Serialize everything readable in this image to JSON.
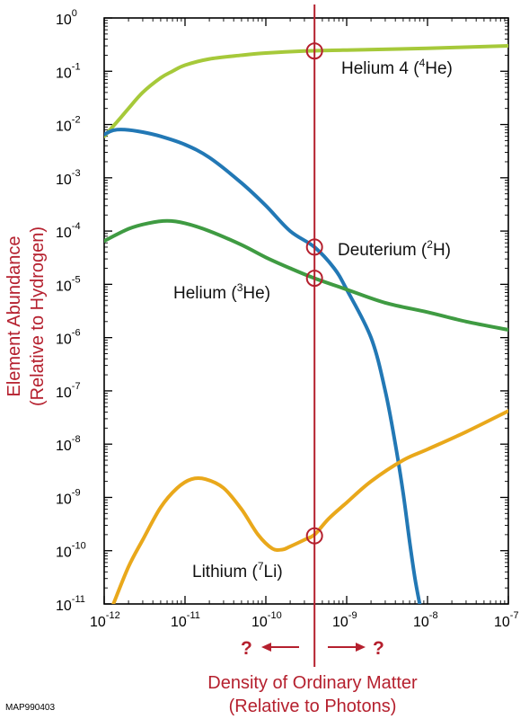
{
  "chart_data": {
    "type": "line",
    "x_scale": "log",
    "y_scale": "log",
    "xlim": [
      1e-12,
      1e-07
    ],
    "ylim": [
      1e-11,
      1
    ],
    "grid": false,
    "xlabel": [
      "Density of Ordinary Matter",
      "(Relative to Photons)"
    ],
    "ylabel": [
      "Element Abundance",
      "(Relative to Hydrogen)"
    ],
    "x_ticks": [
      {
        "base": "10",
        "exp": "-12",
        "value": 1e-12
      },
      {
        "base": "10",
        "exp": "-11",
        "value": 1e-11
      },
      {
        "base": "10",
        "exp": "-10",
        "value": 1e-10
      },
      {
        "base": "10",
        "exp": "-9",
        "value": 1e-09
      },
      {
        "base": "10",
        "exp": "-8",
        "value": 1e-08
      },
      {
        "base": "10",
        "exp": "-7",
        "value": 1e-07
      }
    ],
    "y_ticks": [
      {
        "base": "10",
        "exp": "0",
        "value": 1
      },
      {
        "base": "10",
        "exp": "-1",
        "value": 0.1
      },
      {
        "base": "10",
        "exp": "-2",
        "value": 0.01
      },
      {
        "base": "10",
        "exp": "-3",
        "value": 0.001
      },
      {
        "base": "10",
        "exp": "-4",
        "value": 0.0001
      },
      {
        "base": "10",
        "exp": "-5",
        "value": 1e-05
      },
      {
        "base": "10",
        "exp": "-6",
        "value": 1e-06
      },
      {
        "base": "10",
        "exp": "-7",
        "value": 1e-07
      },
      {
        "base": "10",
        "exp": "-8",
        "value": 1e-08
      },
      {
        "base": "10",
        "exp": "-9",
        "value": 1e-09
      },
      {
        "base": "10",
        "exp": "-10",
        "value": 1e-10
      },
      {
        "base": "10",
        "exp": "-11",
        "value": 1e-11
      }
    ],
    "series": [
      {
        "key": "he4",
        "label": {
          "pre": "Helium 4 (",
          "sup": "4",
          "post": "He)"
        },
        "color": "#a6c93a",
        "points": [
          [
            1e-12,
            0.006
          ],
          [
            1.5e-12,
            0.012
          ],
          [
            2e-12,
            0.02
          ],
          [
            3e-12,
            0.04
          ],
          [
            5e-12,
            0.075
          ],
          [
            7e-12,
            0.1
          ],
          [
            1e-11,
            0.13
          ],
          [
            2e-11,
            0.17
          ],
          [
            5e-11,
            0.2
          ],
          [
            1e-10,
            0.22
          ],
          [
            3e-10,
            0.24
          ],
          [
            1e-09,
            0.25
          ],
          [
            1e-08,
            0.27
          ],
          [
            1e-07,
            0.3
          ]
        ]
      },
      {
        "key": "deuterium",
        "label": {
          "pre": "Deuterium (",
          "sup": "2",
          "post": "H)"
        },
        "color": "#2278b5",
        "points": [
          [
            1e-12,
            0.0065
          ],
          [
            1.3e-12,
            0.0078
          ],
          [
            1.8e-12,
            0.008
          ],
          [
            3e-12,
            0.0072
          ],
          [
            5e-12,
            0.006
          ],
          [
            1e-11,
            0.0042
          ],
          [
            2e-11,
            0.0024
          ],
          [
            5e-11,
            0.0008
          ],
          [
            1e-10,
            0.0003
          ],
          [
            2e-10,
            0.0001
          ],
          [
            4e-10,
            5e-05
          ],
          [
            7e-10,
            2e-05
          ],
          [
            1e-09,
            8e-06
          ],
          [
            2e-09,
            1e-06
          ],
          [
            3e-09,
            1e-07
          ],
          [
            4e-09,
            1e-08
          ],
          [
            5e-09,
            1.2e-09
          ],
          [
            6e-09,
            1.5e-10
          ],
          [
            7e-09,
            3e-11
          ],
          [
            8e-09,
            1e-11
          ]
        ]
      },
      {
        "key": "he3",
        "label": {
          "pre": "Helium (",
          "sup": "3",
          "post": "He)"
        },
        "color": "#3f9b42",
        "points": [
          [
            1e-12,
            6.5e-05
          ],
          [
            2e-12,
            0.00011
          ],
          [
            3.5e-12,
            0.00014
          ],
          [
            6e-12,
            0.000155
          ],
          [
            1e-11,
            0.00014
          ],
          [
            2e-11,
            0.0001
          ],
          [
            5e-11,
            5.5e-05
          ],
          [
            1e-10,
            3.2e-05
          ],
          [
            2e-10,
            2e-05
          ],
          [
            4e-10,
            1.3e-05
          ],
          [
            1e-09,
            8e-06
          ],
          [
            3e-09,
            4.5e-06
          ],
          [
            1e-08,
            3e-06
          ],
          [
            3e-08,
            2e-06
          ],
          [
            1e-07,
            1.4e-06
          ]
        ]
      },
      {
        "key": "lithium",
        "label": {
          "pre": "Lithium (",
          "sup": "7",
          "post": "Li)"
        },
        "color": "#e9a81b",
        "points": [
          [
            1.3e-12,
            1e-11
          ],
          [
            2e-12,
            5e-11
          ],
          [
            3e-12,
            1.6e-10
          ],
          [
            5e-12,
            6.5e-10
          ],
          [
            8e-12,
            1.5e-09
          ],
          [
            1.2e-11,
            2.2e-09
          ],
          [
            1.8e-11,
            2.2e-09
          ],
          [
            3e-11,
            1.5e-09
          ],
          [
            5e-11,
            6e-10
          ],
          [
            8e-11,
            2e-10
          ],
          [
            1.2e-10,
            1.1e-10
          ],
          [
            1.6e-10,
            1.05e-10
          ],
          [
            2e-10,
            1.2e-10
          ],
          [
            3e-10,
            1.6e-10
          ],
          [
            4e-10,
            2e-10
          ],
          [
            6e-10,
            4e-10
          ],
          [
            1e-09,
            8e-10
          ],
          [
            2e-09,
            2e-09
          ],
          [
            5e-09,
            5e-09
          ],
          [
            1e-08,
            8e-09
          ],
          [
            3e-08,
            1.7e-08
          ],
          [
            1e-07,
            4.2e-08
          ]
        ]
      }
    ],
    "measurement_line": {
      "x": 4e-10,
      "color": "#b5202e"
    },
    "markers": [
      {
        "series": "he4",
        "x": 4e-10,
        "y": 0.24
      },
      {
        "series": "deuterium",
        "x": 4e-10,
        "y": 5e-05
      },
      {
        "series": "he3",
        "x": 4e-10,
        "y": 1.3e-05
      },
      {
        "series": "lithium",
        "x": 4e-10,
        "y": 1.9e-10
      }
    ],
    "arrow_labels": {
      "left": "?",
      "right": "?"
    },
    "credit": "MAP990403"
  }
}
